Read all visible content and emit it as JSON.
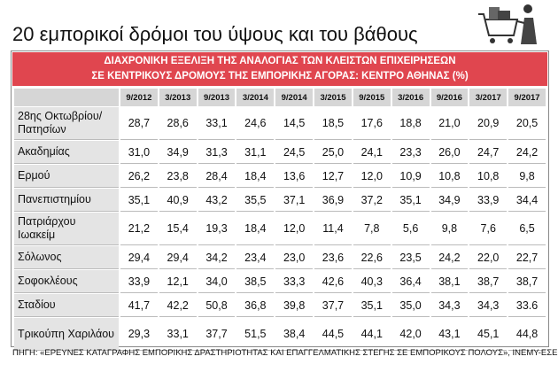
{
  "header": {
    "title": "20 εμπορικοί δρόμοι του ύψους και του βάθους",
    "banner": [
      "ΔΙΑΧΡΟΝΙΚΗ ΕΞΕΛΙΞΗ ΤΗΣ ΑΝΑΛΟΓΙΑΣ ΤΩΝ ΚΛΕΙΣΤΩΝ ΕΠΙΧΕΙΡΗΣΕΩΝ",
      "ΣΕ ΚΕΝΤΡΙΚΟΥΣ ΔΡΟΜΟΥΣ ΤΗΣ ΕΜΠΟΡΙΚΗΣ ΑΓΟΡΑΣ: ΚΕΝΤΡΟ ΑΘΗΝΑΣ (%)"
    ]
  },
  "table": {
    "columns": [
      "9/2012",
      "3/2013",
      "9/2013",
      "3/2014",
      "9/2014",
      "3/2015",
      "9/2015",
      "3/2016",
      "9/2016",
      "3/2017",
      "9/2017"
    ],
    "rows": [
      [
        "28ης Οκτωβρίου/ Πατησίων",
        "28,7",
        "28,6",
        "33,1",
        "24,6",
        "14,5",
        "18,5",
        "17,6",
        "18,8",
        "21,0",
        "20,9",
        "20,5"
      ],
      [
        "Ακαδημίας",
        "31,0",
        "34,9",
        "31,3",
        "31,1",
        "24,5",
        "25,0",
        "24,1",
        "23,3",
        "26,0",
        "24,7",
        "24,2"
      ],
      [
        "Ερμού",
        "26,2",
        "23,8",
        "28,4",
        "18,4",
        "13,6",
        "12,7",
        "12,0",
        "10,9",
        "10,8",
        "10,8",
        "9,8"
      ],
      [
        "Πανεπιστημίου",
        "35,1",
        "40,9",
        "43,2",
        "35,5",
        "37,1",
        "36,9",
        "37,2",
        "35,1",
        "34,9",
        "33,9",
        "34,4"
      ],
      [
        "Πατριάρχου Ιωακείμ",
        "21,2",
        "15,4",
        "19,3",
        "18,4",
        "12,0",
        "11,4",
        "7,8",
        "5,6",
        "9,8",
        "7,6",
        "6,5"
      ],
      [
        "Σόλωνος",
        "29,4",
        "29,4",
        "34,2",
        "23,4",
        "23,0",
        "23,6",
        "22,6",
        "23,5",
        "24,2",
        "22,0",
        "22,7"
      ],
      [
        "Σοφοκλέους",
        "33,9",
        "12,1",
        "34,0",
        "38,5",
        "33,3",
        "42,6",
        "40,3",
        "36,4",
        "38,1",
        "38,7",
        "38,7"
      ],
      [
        "Σταδίου",
        "41,7",
        "42,2",
        "50,8",
        "36,8",
        "39,8",
        "37,7",
        "35,1",
        "35,0",
        "34,3",
        "34,3",
        "33.6"
      ],
      [
        "Τρικούπη Χαριλάου",
        "29,3",
        "33,1",
        "37,7",
        "51,5",
        "38,4",
        "44,5",
        "44,1",
        "42,0",
        "43,1",
        "45,1",
        "44,8"
      ]
    ]
  },
  "footer": {
    "source": "ΠΗΓΗ: «ΕΡΕΥΝΕΣ ΚΑΤΑΓΡΑΦΗΣ ΕΜΠΟΡΙΚΗΣ ΔΡΑΣΤΗΡΙΟΤΗΤΑΣ ΚΑΙ ΕΠΑΓΓΕΛΜΑΤΙΚΗΣ ΣΤΕΓΗΣ ΣΕ ΕΜΠΟΡΙΚΟΥΣ ΠΟΛΟΥΣ», ΙΝΕΜΥ-ΕΣΕΕ"
  }
}
